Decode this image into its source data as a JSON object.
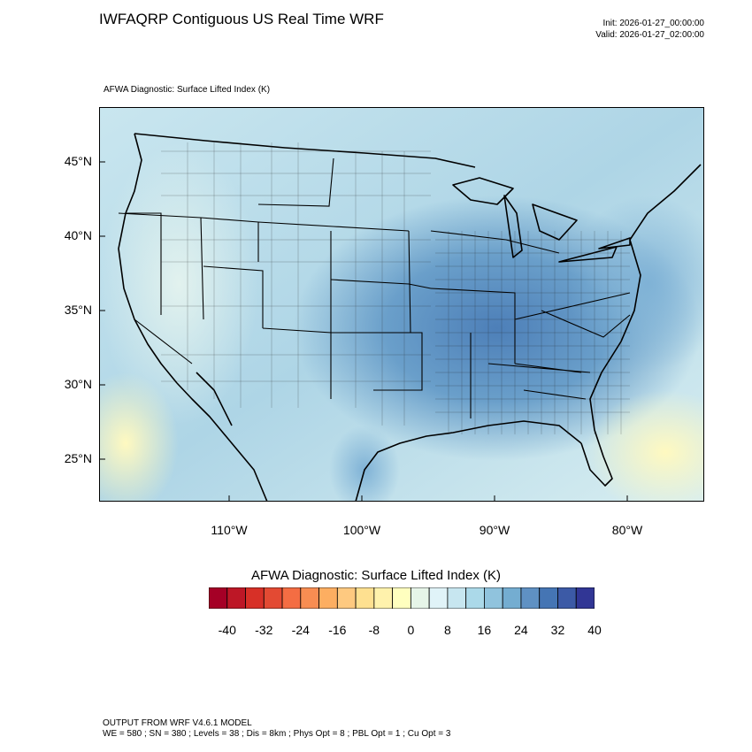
{
  "header": {
    "title": "IWFAQRP Contiguous US Real Time WRF",
    "init": "Init: 2026-01-27_00:00:00",
    "valid": "Valid: 2026-01-27_02:00:00",
    "subtitle": "AFWA Diagnostic: Surface Lifted Index   (K)"
  },
  "map": {
    "lat_labels": [
      "45°N",
      "40°N",
      "35°N",
      "30°N",
      "25°N"
    ],
    "lat_values": [
      45,
      40,
      35,
      30,
      25
    ],
    "lon_labels": [
      "110°W",
      "100°W",
      "90°W",
      "80°W"
    ],
    "lon_values": [
      -110,
      -100,
      -90,
      -80
    ],
    "field": "Surface Lifted Index",
    "units": "K"
  },
  "colorbar": {
    "title": "AFWA Diagnostic: Surface Lifted Index  (K)",
    "ticks": [
      "-40",
      "-32",
      "-24",
      "-16",
      "-8",
      "0",
      "8",
      "16",
      "24",
      "32",
      "40"
    ],
    "colors": [
      "#a50026",
      "#bd1726",
      "#d73027",
      "#e34a33",
      "#f46d43",
      "#f88d52",
      "#fdae61",
      "#fec980",
      "#fee090",
      "#fff2ac",
      "#ffffbf",
      "#e6f5e8",
      "#e0f3f8",
      "#c7e6f0",
      "#abd9e9",
      "#90c3dd",
      "#74add1",
      "#5f91c3",
      "#4575b4",
      "#3c5aa6",
      "#313695"
    ]
  },
  "footer": {
    "line1": "OUTPUT FROM WRF V4.6.1 MODEL",
    "line2": "WE = 580 ; SN = 380 ; Levels = 38 ; Dis = 8km ; Phys Opt = 8 ; PBL Opt = 1 ; Cu Opt = 3"
  }
}
